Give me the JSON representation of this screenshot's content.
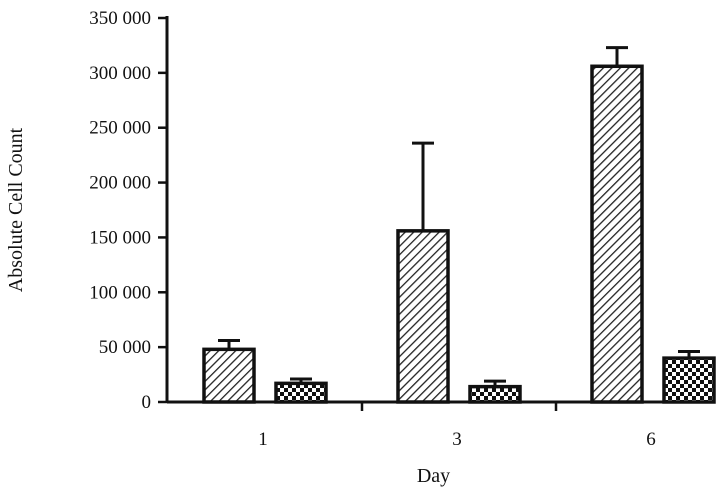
{
  "chart_data": {
    "type": "bar",
    "title": "",
    "xlabel": "Day",
    "ylabel": "Absolute Cell Count",
    "categories": [
      "1",
      "3",
      "6"
    ],
    "ylim": [
      0,
      350000
    ],
    "yticks": [
      0,
      50000,
      100000,
      150000,
      200000,
      250000,
      300000,
      350000
    ],
    "ytick_labels": [
      "0",
      "50 000",
      "100 000",
      "150 000",
      "200 000",
      "250 000",
      "300 000",
      "350 000"
    ],
    "grid": false,
    "legend": "none",
    "series": [
      {
        "pattern": "diagonal-hatch",
        "values": [
          48000,
          156000,
          306000
        ],
        "error": [
          8000,
          80000,
          17000
        ]
      },
      {
        "pattern": "checkerboard",
        "values": [
          17000,
          14000,
          40000
        ],
        "error": [
          4000,
          5000,
          6000
        ]
      }
    ]
  }
}
